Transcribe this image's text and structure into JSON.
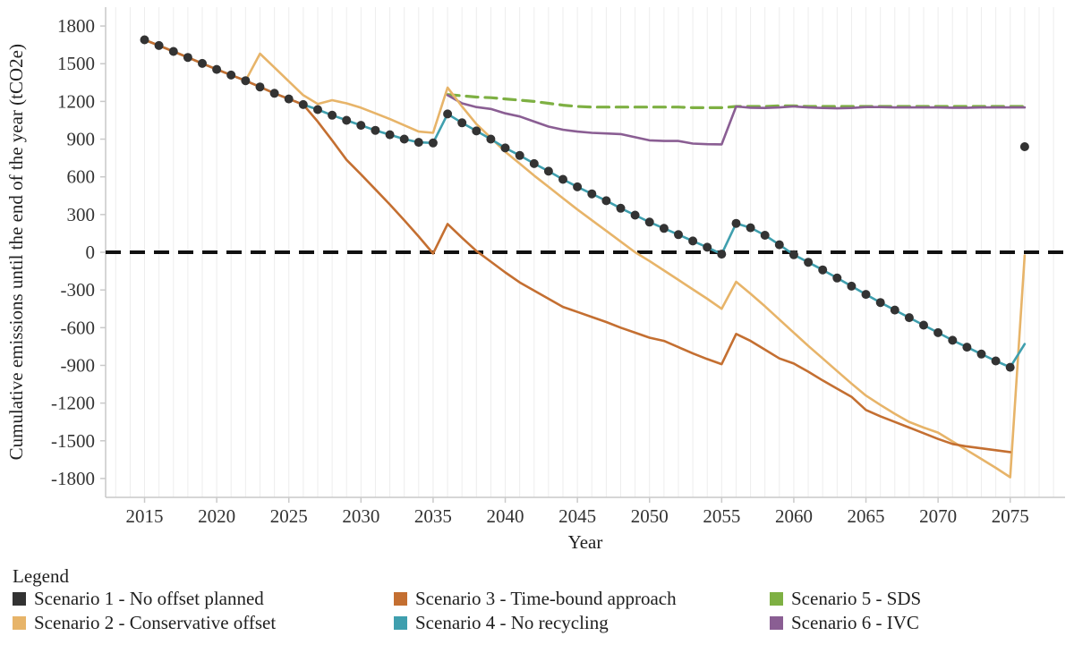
{
  "page": {
    "background": "#ffffff"
  },
  "legend": {
    "title": "Legend"
  },
  "chart_data": {
    "type": "line",
    "title": "",
    "xlabel": "Year",
    "ylabel": "Cumulative emissions until the end of the year (tCO2e)",
    "xlim": [
      2012.3,
      2078.8
    ],
    "ylim": [
      -1950,
      1950
    ],
    "xticks": [
      2015,
      2020,
      2025,
      2030,
      2035,
      2040,
      2045,
      2050,
      2055,
      2060,
      2065,
      2070,
      2075
    ],
    "yticks": [
      1800,
      1500,
      1200,
      900,
      600,
      300,
      0,
      -300,
      -600,
      -900,
      -1200,
      -1500,
      -1800
    ],
    "grid": "vertical-faint",
    "grid_color": "#ededed",
    "axis_color": "#c9c9c9",
    "tick_text_color": "#333333",
    "legend_position": "bottom",
    "zero_line": {
      "show": true,
      "color": "#111111",
      "style": "dashed"
    },
    "series": [
      {
        "id": "scenario-1",
        "name": "Scenario 1 - No offset planned",
        "color": "#333333",
        "style": "dots",
        "draw_order": 5,
        "start_year": 2015,
        "values": [
          1690,
          1645,
          1598,
          1550,
          1502,
          1455,
          1410,
          1365,
          1315,
          1265,
          1220,
          1175,
          1135,
          1090,
          1050,
          1010,
          970,
          935,
          900,
          875,
          870,
          1100,
          1030,
          965,
          900,
          830,
          770,
          705,
          645,
          580,
          520,
          465,
          410,
          350,
          295,
          240,
          190,
          140,
          90,
          40,
          -15,
          230,
          195,
          135,
          60,
          -20,
          -80,
          -140,
          -205,
          -270,
          -335,
          -400,
          -460,
          -520,
          -580,
          -640,
          -700,
          -755,
          -810,
          -865,
          -915,
          840
        ]
      },
      {
        "id": "scenario-2",
        "name": "Scenario 2 - Conservative offset",
        "color": "#e7b469",
        "style": "solid",
        "draw_order": 2,
        "start_year": 2015,
        "values": [
          1690,
          1645,
          1598,
          1550,
          1502,
          1455,
          1410,
          1365,
          1580,
          1470,
          1360,
          1250,
          1180,
          1210,
          1185,
          1150,
          1105,
          1060,
          1010,
          960,
          950,
          1310,
          1160,
          1020,
          910,
          800,
          705,
          610,
          520,
          430,
          340,
          255,
          170,
          85,
          0,
          -70,
          -145,
          -220,
          -295,
          -370,
          -450,
          -235,
          -330,
          -430,
          -535,
          -640,
          -745,
          -845,
          -945,
          -1045,
          -1140,
          -1215,
          -1285,
          -1350,
          -1395,
          -1435,
          -1505,
          -1575,
          -1645,
          -1715,
          -1790,
          -25
        ]
      },
      {
        "id": "scenario-3",
        "name": "Scenario 3 - Time-bound approach",
        "color": "#c46f31",
        "style": "solid",
        "draw_order": 4,
        "start_year": 2015,
        "values": [
          1690,
          1645,
          1598,
          1550,
          1502,
          1455,
          1410,
          1365,
          1315,
          1265,
          1220,
          1175,
          1040,
          890,
          735,
          620,
          500,
          380,
          255,
          125,
          -10,
          225,
          115,
          10,
          -75,
          -160,
          -240,
          -305,
          -370,
          -435,
          -475,
          -515,
          -555,
          -600,
          -640,
          -680,
          -705,
          -755,
          -805,
          -850,
          -890,
          -650,
          -705,
          -775,
          -845,
          -885,
          -950,
          -1020,
          -1085,
          -1150,
          -1255,
          -1305,
          -1350,
          -1395,
          -1440,
          -1485,
          -1525,
          -1545,
          -1560,
          -1575,
          -1590
        ]
      },
      {
        "id": "scenario-4",
        "name": "Scenario 4 - No recycling",
        "color": "#3f9fae",
        "style": "solid",
        "draw_order": 3,
        "start_year": 2015,
        "values": [
          1690,
          1645,
          1598,
          1550,
          1502,
          1455,
          1410,
          1365,
          1315,
          1265,
          1220,
          1175,
          1135,
          1090,
          1050,
          1010,
          970,
          935,
          900,
          875,
          870,
          1100,
          1030,
          965,
          900,
          830,
          770,
          705,
          645,
          580,
          520,
          465,
          410,
          350,
          295,
          240,
          190,
          140,
          90,
          40,
          -15,
          230,
          195,
          135,
          60,
          -20,
          -80,
          -140,
          -205,
          -270,
          -335,
          -400,
          -460,
          -520,
          -580,
          -640,
          -700,
          -755,
          -810,
          -865,
          -915,
          -730
        ]
      },
      {
        "id": "scenario-5",
        "name": "Scenario 5 - SDS",
        "color": "#7eb043",
        "style": "dashed",
        "draw_order": 0,
        "start_year": 2036,
        "values": [
          1255,
          1245,
          1235,
          1230,
          1220,
          1210,
          1200,
          1185,
          1170,
          1160,
          1155,
          1155,
          1155,
          1155,
          1155,
          1155,
          1155,
          1150,
          1150,
          1150,
          1160,
          1160,
          1160,
          1165,
          1165,
          1160,
          1160,
          1160,
          1160,
          1160,
          1160,
          1160,
          1160,
          1160,
          1160,
          1160,
          1160,
          1160,
          1160,
          1160,
          1160
        ]
      },
      {
        "id": "scenario-6",
        "name": "Scenario 6 - IVC",
        "color": "#8a5e93",
        "style": "solid",
        "draw_order": 1,
        "start_year": 2036,
        "values": [
          1250,
          1185,
          1155,
          1140,
          1105,
          1080,
          1040,
          1000,
          975,
          960,
          950,
          945,
          940,
          915,
          890,
          885,
          885,
          865,
          860,
          858,
          1160,
          1150,
          1148,
          1152,
          1160,
          1152,
          1148,
          1145,
          1148,
          1155,
          1155,
          1152,
          1152,
          1152,
          1152,
          1150,
          1150,
          1152,
          1152,
          1152,
          1152
        ]
      }
    ]
  }
}
